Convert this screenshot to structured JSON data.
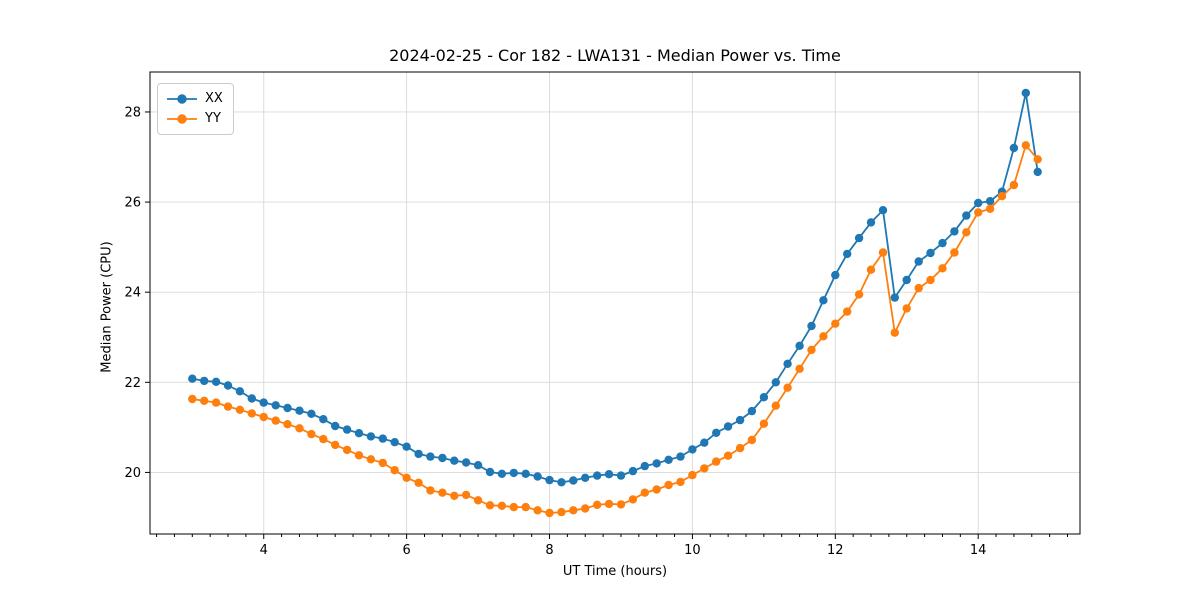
{
  "title": "2024-02-25 - Cor 182 - LWA131 - Median Power vs. Time",
  "legend": {
    "items": [
      {
        "label": "XX",
        "color": "#1f77b4"
      },
      {
        "label": "YY",
        "color": "#ff7f0e"
      }
    ]
  },
  "colors": {
    "background": "#ffffff",
    "grid": "#d9d9d9",
    "spine": "#000000",
    "text": "#000000",
    "series_xx": "#1f77b4",
    "series_yy": "#ff7f0e"
  },
  "chart_data": {
    "type": "line",
    "title": "2024-02-25 - Cor 182 - LWA131 - Median Power vs. Time",
    "xlabel": "UT Time (hours)",
    "ylabel": "Median Power (CPU)",
    "xlim": [
      2.408,
      15.425
    ],
    "ylim": [
      18.633,
      28.887
    ],
    "x_ticks": [
      4,
      6,
      8,
      10,
      12,
      14
    ],
    "y_ticks": [
      20,
      22,
      24,
      26,
      28
    ],
    "x_minor_tick_step": 0.25,
    "grid": true,
    "legend_position": "upper-left",
    "marker": "circle",
    "x": [
      3.0,
      3.167,
      3.333,
      3.5,
      3.667,
      3.833,
      4.0,
      4.167,
      4.333,
      4.5,
      4.667,
      4.833,
      5.0,
      5.167,
      5.333,
      5.5,
      5.667,
      5.833,
      6.0,
      6.167,
      6.333,
      6.5,
      6.667,
      6.833,
      7.0,
      7.167,
      7.333,
      7.5,
      7.667,
      7.833,
      8.0,
      8.167,
      8.333,
      8.5,
      8.667,
      8.833,
      9.0,
      9.167,
      9.333,
      9.5,
      9.667,
      9.833,
      10.0,
      10.167,
      10.333,
      10.5,
      10.667,
      10.833,
      11.0,
      11.167,
      11.333,
      11.5,
      11.667,
      11.833,
      12.0,
      12.167,
      12.333,
      12.5,
      12.667,
      12.833,
      13.0,
      13.167,
      13.333,
      13.5,
      13.667,
      13.833,
      14.0,
      14.167,
      14.333,
      14.5,
      14.667,
      14.833
    ],
    "series": [
      {
        "name": "XX",
        "color": "#1f77b4",
        "values": [
          22.08,
          22.03,
          22.01,
          21.93,
          21.8,
          21.64,
          21.55,
          21.49,
          21.43,
          21.37,
          21.3,
          21.18,
          21.03,
          20.95,
          20.87,
          20.8,
          20.75,
          20.67,
          20.57,
          20.41,
          20.35,
          20.32,
          20.26,
          20.22,
          20.16,
          20.01,
          19.97,
          19.99,
          19.97,
          19.91,
          19.83,
          19.78,
          19.82,
          19.88,
          19.93,
          19.96,
          19.93,
          20.03,
          20.14,
          20.2,
          20.28,
          20.35,
          20.51,
          20.66,
          20.88,
          21.02,
          21.16,
          21.36,
          21.67,
          22.0,
          22.41,
          22.81,
          23.25,
          23.82,
          24.38,
          24.85,
          25.2,
          25.55,
          25.82,
          23.88,
          24.27,
          24.68,
          24.87,
          25.09,
          25.35,
          25.7,
          25.98,
          26.02,
          26.23,
          27.2,
          28.42,
          26.67
        ]
      },
      {
        "name": "YY",
        "color": "#ff7f0e",
        "values": [
          21.63,
          21.59,
          21.55,
          21.46,
          21.39,
          21.31,
          21.23,
          21.15,
          21.07,
          20.98,
          20.85,
          20.74,
          20.61,
          20.5,
          20.38,
          20.29,
          20.21,
          20.05,
          19.88,
          19.77,
          19.6,
          19.55,
          19.48,
          19.5,
          19.38,
          19.27,
          19.26,
          19.23,
          19.23,
          19.16,
          19.1,
          19.12,
          19.16,
          19.2,
          19.28,
          19.3,
          19.29,
          19.4,
          19.55,
          19.62,
          19.72,
          19.79,
          19.94,
          20.09,
          20.24,
          20.37,
          20.54,
          20.72,
          21.08,
          21.48,
          21.88,
          22.3,
          22.72,
          23.02,
          23.3,
          23.57,
          23.95,
          24.5,
          24.88,
          23.1,
          23.64,
          24.09,
          24.27,
          24.53,
          24.88,
          25.33,
          25.77,
          25.85,
          26.13,
          26.38,
          27.26,
          26.95
        ]
      }
    ]
  }
}
